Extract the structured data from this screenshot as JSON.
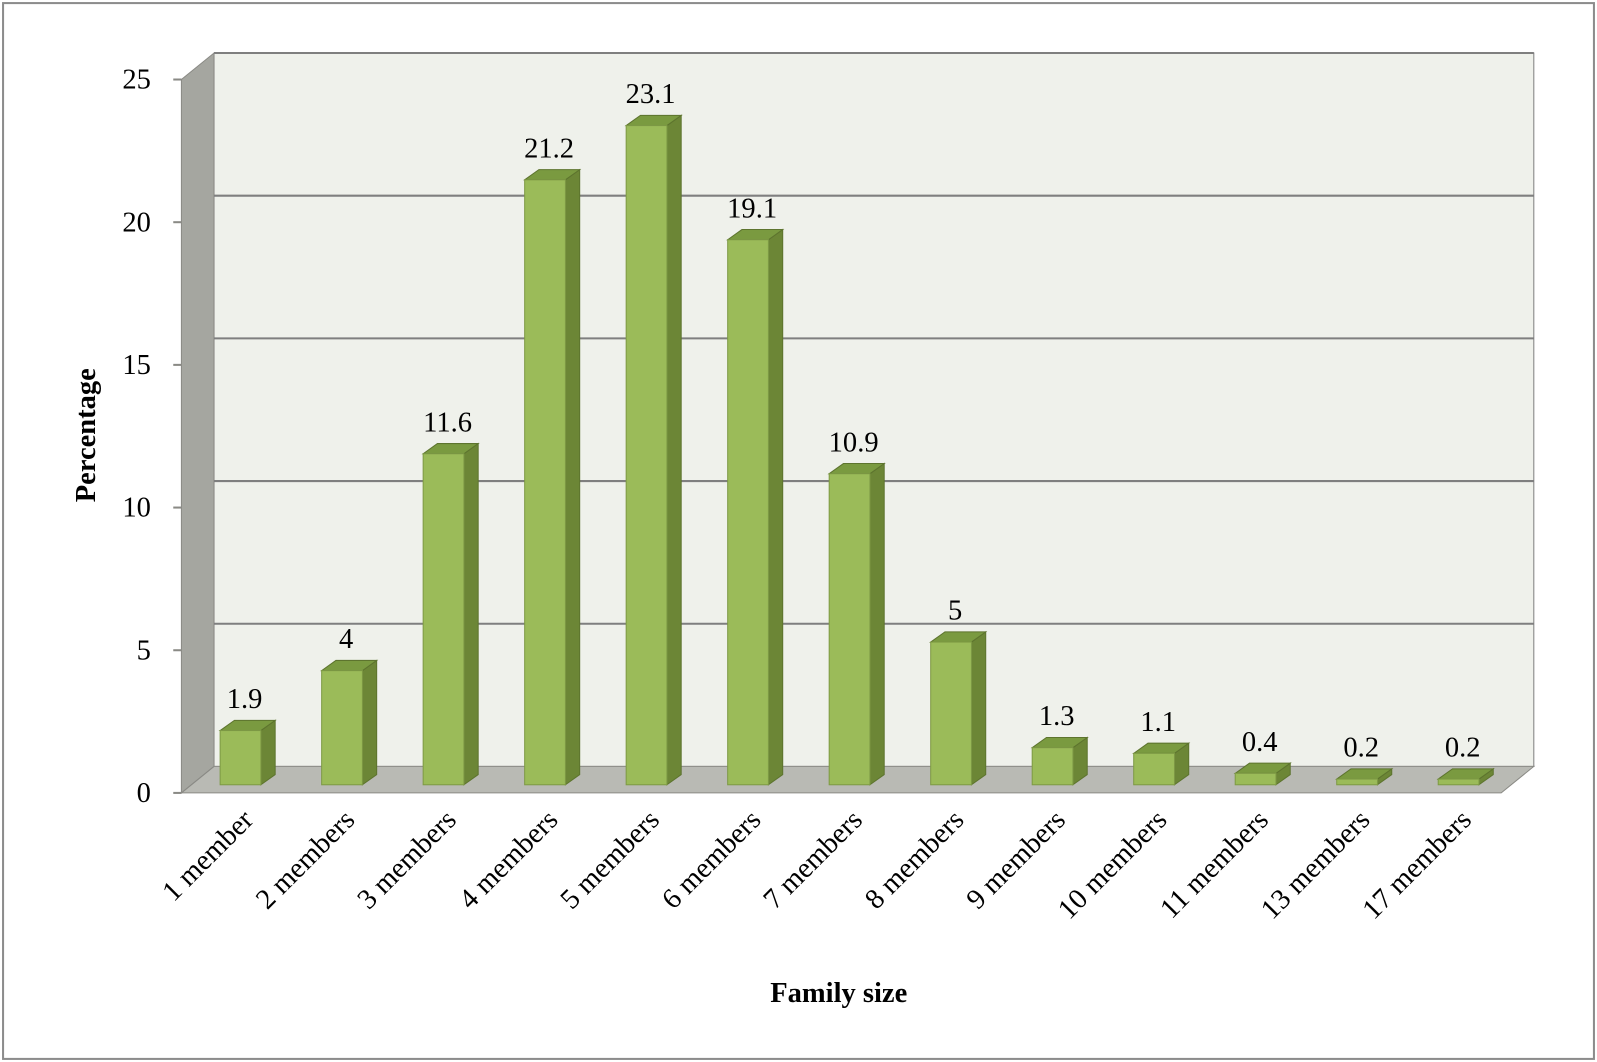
{
  "chart_data": {
    "type": "bar",
    "style": "3d-column",
    "categories": [
      "1 member",
      "2 members",
      "3 members",
      "4 members",
      "5 members",
      "6 members",
      "7 members",
      "8 members",
      "9 members",
      "10 members",
      "11 members",
      "13 members",
      "17 members"
    ],
    "values": [
      1.9,
      4,
      11.6,
      21.2,
      23.1,
      19.1,
      10.9,
      5,
      1.3,
      1.1,
      0.4,
      0.2,
      0.2
    ],
    "value_labels": [
      "1.9",
      "4",
      "11.6",
      "21.2",
      "23.1",
      "19.1",
      "10.9",
      "5",
      "1.3",
      "1.1",
      "0.4",
      "0.2",
      "0.2"
    ],
    "title": "",
    "xlabel": "Family size",
    "ylabel": "Percentage",
    "ylim": [
      0,
      25
    ],
    "yticks": [
      0,
      5,
      10,
      15,
      20,
      25
    ],
    "ytick_labels": [
      "0",
      "5",
      "10",
      "15",
      "20",
      "25"
    ],
    "grid": true,
    "legend": "none",
    "colors": {
      "bar_front": "#9bbb59",
      "bar_side": "#6c8636",
      "bar_top": "#7a9a40",
      "back_wall": "#eff1eb",
      "side_wall": "#a5a6a0",
      "floor": "#b9bab4",
      "grid": "#7f7f7f"
    }
  }
}
